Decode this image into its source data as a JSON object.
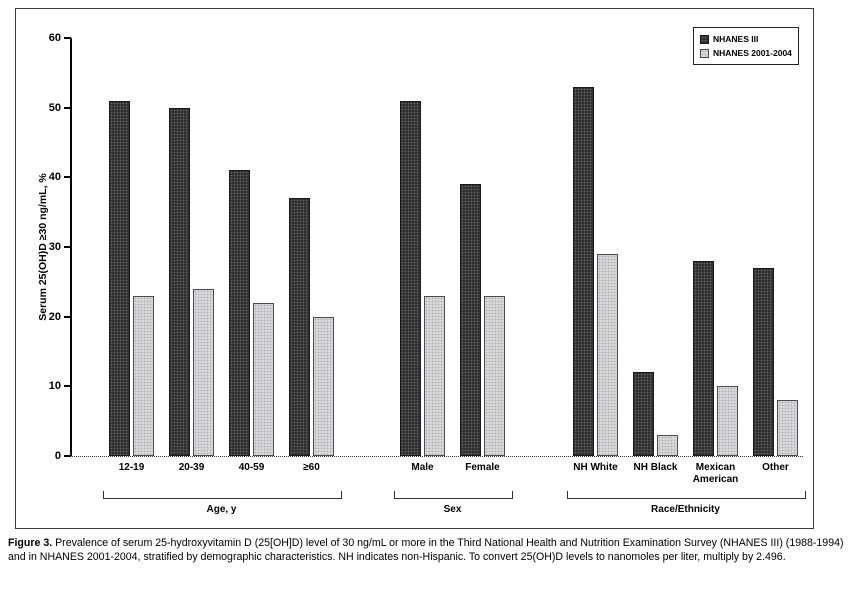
{
  "caption": {
    "label": "Figure 3.",
    "text": "Prevalence of serum 25-hydroxyvitamin D (25[OH]D) level of 30 ng/mL or more in the Third National Health and Nutrition Examination Survey (NHANES III) (1988-1994) and in NHANES 2001-2004, stratified by demographic characteristics. NH indicates non-Hispanic. To convert 25(OH)D levels to nanomoles per liter, multiply by 2.496."
  },
  "chart_data": {
    "type": "bar",
    "title": "",
    "xlabel": "",
    "ylabel": "Serum 25(OH)D ≥30 ng/mL, %",
    "ylim": [
      0,
      60
    ],
    "yticks": [
      0,
      10,
      20,
      30,
      40,
      50,
      60
    ],
    "grid": false,
    "legend_position": "top-right",
    "series": [
      {
        "name": "NHANES III",
        "color": "#2f2f2f"
      },
      {
        "name": "NHANES 2001-2004",
        "color": "#d9d9d9"
      }
    ],
    "sections": [
      {
        "label": "Age, y",
        "categories": [
          "12-19",
          "20-39",
          "40-59",
          "≥60"
        ],
        "series": [
          {
            "name": "NHANES III",
            "values": [
              51,
              50,
              41,
              37
            ]
          },
          {
            "name": "NHANES 2001-2004",
            "values": [
              23,
              24,
              22,
              20
            ]
          }
        ]
      },
      {
        "label": "Sex",
        "categories": [
          "Male",
          "Female"
        ],
        "series": [
          {
            "name": "NHANES III",
            "values": [
              51,
              39
            ]
          },
          {
            "name": "NHANES 2001-2004",
            "values": [
              23,
              23
            ]
          }
        ]
      },
      {
        "label": "Race/Ethnicity",
        "categories": [
          "NH White",
          "NH Black",
          "Mexican American",
          "Other"
        ],
        "series": [
          {
            "name": "NHANES III",
            "values": [
              53,
              12,
              28,
              27
            ]
          },
          {
            "name": "NHANES 2001-2004",
            "values": [
              29,
              3,
              10,
              8
            ]
          }
        ]
      }
    ]
  }
}
